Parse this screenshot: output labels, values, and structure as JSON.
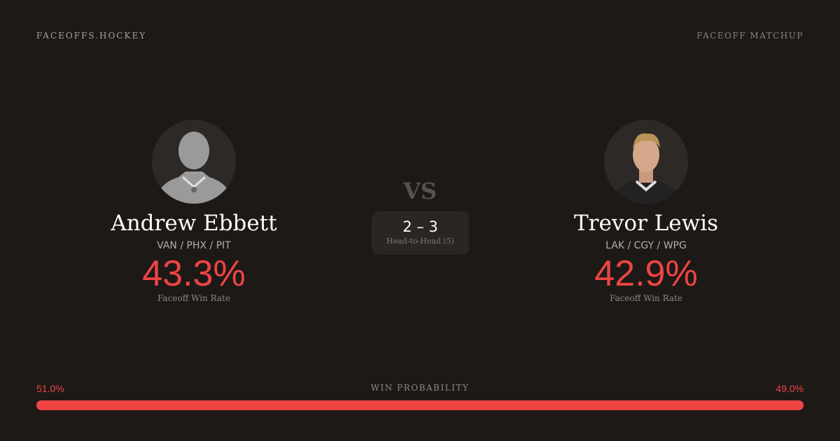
{
  "header": {
    "brand": "FACEOFFS.HOCKEY",
    "tag": "FACEOFF MATCHUP"
  },
  "players": [
    {
      "name": "Andrew Ebbett",
      "teams": "VAN / PHX / PIT",
      "win_rate": "43.3%",
      "win_rate_label": "Faceoff Win Rate",
      "photo": "silhouette"
    },
    {
      "name": "Trevor Lewis",
      "teams": "LAK / CGY / WPG",
      "win_rate": "42.9%",
      "win_rate_label": "Faceoff Win Rate",
      "photo": "headshot"
    }
  ],
  "vs": "VS",
  "head_to_head": {
    "score": "2 – 3",
    "label": "Head-to-Head (5)"
  },
  "win_probability": {
    "title": "WIN PROBABILITY",
    "left": "51.0%",
    "right": "49.0%",
    "left_value": 51.0,
    "right_value": 49.0,
    "color": "#ee4444"
  }
}
